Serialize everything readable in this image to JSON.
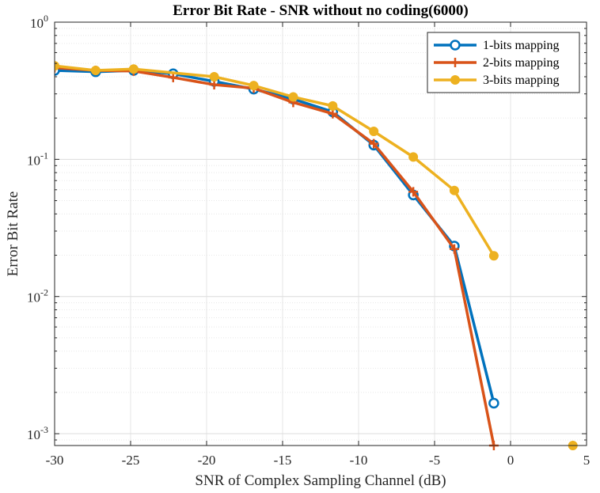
{
  "chart_data": {
    "type": "line",
    "title": "Error Bit Rate - SNR without no coding(6000)",
    "xlabel": "SNR of Complex Sampling Channel (dB)",
    "ylabel": "Error Bit Rate",
    "xlim": [
      -30,
      5
    ],
    "ylim": [
      0.00082,
      1
    ],
    "yscale": "log",
    "grid": true,
    "legend_position": "top-right",
    "x_ticks": [
      "-30",
      "-25",
      "-20",
      "-15",
      "-10",
      "-5",
      "0",
      "5"
    ],
    "y_ticks": [
      {
        "base": "10",
        "exp": "0"
      },
      {
        "base": "10",
        "exp": "-1"
      },
      {
        "base": "10",
        "exp": "-2"
      },
      {
        "base": "10",
        "exp": "-3"
      }
    ],
    "series": [
      {
        "name": "1-bits mapping",
        "color": "#0072BD",
        "marker": "circle-open",
        "x": [
          -30,
          -27.3,
          -24.8,
          -22.2,
          -19.5,
          -16.9,
          -14.3,
          -11.7,
          -9.0,
          -6.4,
          -3.7,
          -1.1
        ],
        "y": [
          0.445,
          0.435,
          0.445,
          0.42,
          0.37,
          0.325,
          0.275,
          0.222,
          0.127,
          0.055,
          0.0233,
          0.00167
        ]
      },
      {
        "name": "2-bits mapping",
        "color": "#D95319",
        "marker": "plus",
        "x": [
          -30,
          -27.3,
          -24.8,
          -22.2,
          -19.5,
          -16.9,
          -14.3,
          -11.7,
          -9.0,
          -6.4,
          -3.7,
          -1.1
        ],
        "y": [
          0.465,
          0.445,
          0.44,
          0.395,
          0.35,
          0.33,
          0.26,
          0.215,
          0.13,
          0.058,
          0.0222,
          0.00082
        ]
      },
      {
        "name": "3-bits mapping",
        "color": "#EDB120",
        "marker": "circle-filled",
        "x": [
          -30,
          -27.3,
          -24.8,
          -22.2,
          -19.5,
          -16.9,
          -14.3,
          -11.7,
          -9.0,
          -6.4,
          -3.7,
          -1.1,
          4.1
        ],
        "y": [
          0.48,
          0.445,
          0.455,
          null,
          0.4,
          0.345,
          0.285,
          0.245,
          0.16,
          0.104,
          0.0593,
          0.0198,
          0.00082
        ]
      }
    ]
  }
}
